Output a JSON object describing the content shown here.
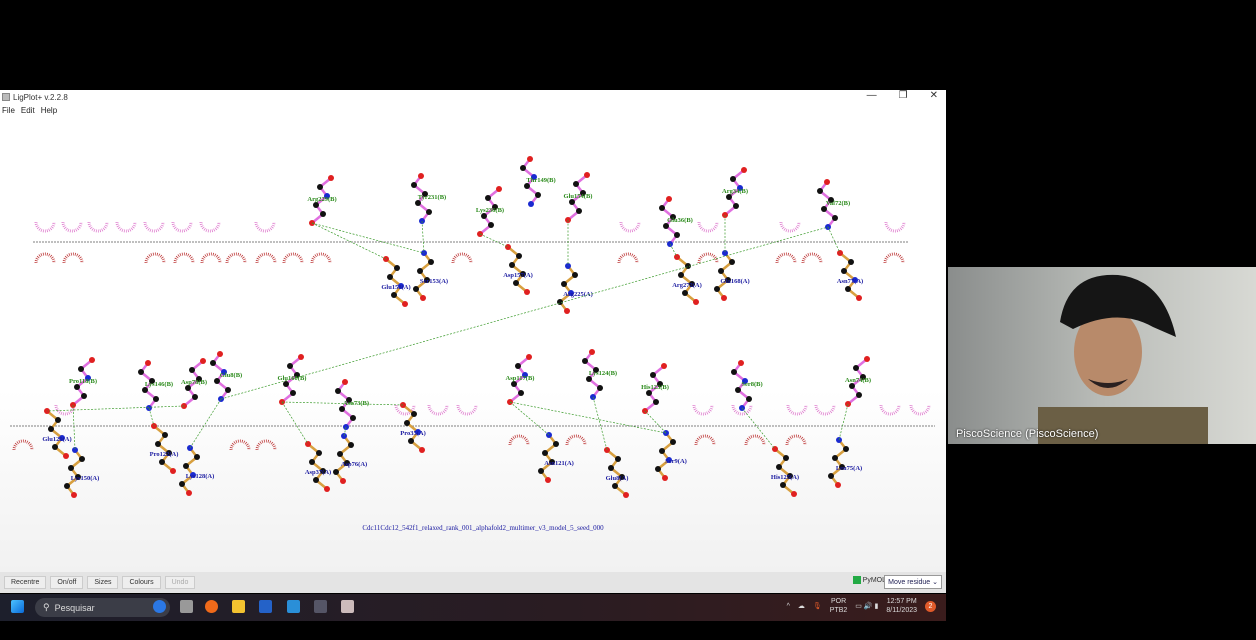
{
  "window": {
    "title": "LigPlot+ v.2.2.8",
    "controls": [
      "—",
      "❐",
      "✕"
    ],
    "menu": [
      "File",
      "Edit",
      "Help"
    ]
  },
  "diagram": {
    "caption": "Cdc11Cdc12_542f1_relaxed_rank_001_alphafold2_multimer_v3_model_5_seed_000",
    "colors": {
      "chainB_label": "#2a8a1a",
      "chainA_label": "#1a1aa0",
      "chainB_bond": "#e070e0",
      "chainA_bond": "#d8a040",
      "hbond": "#3a9a2a",
      "carbon": "#111111",
      "oxygen": "#e02020",
      "nitrogen": "#1a2ad0",
      "hydrophobic_A": "#c04040",
      "hydrophobic_B": "#e080d0"
    },
    "top_B": [
      "Arg229(B)",
      "Tyr231(B)",
      "Lys236(B)",
      "Thr149(B)",
      "Glu154(B)",
      "Glu36(B)",
      "Arg34(B)",
      "Val72(B)"
    ],
    "top_A": [
      "Glu158(A)",
      "Ser153(A)",
      "Asp157(A)",
      "Arg225(A)",
      "Arg272(A)",
      "Glu168(A)",
      "Asn77(A)"
    ],
    "bottom_B": [
      "Pro118(B)",
      "Lys146(B)",
      "Asp78(B)",
      "Glu8(B)",
      "Glu160(B)",
      "Asn73(B)",
      "Asp117(B)",
      "Lys124(B)",
      "His123(B)",
      "Ser8(B)",
      "Asn74(B)"
    ],
    "bottom_A": [
      "Glu129(A)",
      "Lys150(A)",
      "Pro122(A)",
      "Lys128(A)",
      "Asp37(A)",
      "Asp76(A)",
      "Pro35(A)",
      "Asn121(A)",
      "Glu8(A)",
      "Ser9(A)",
      "His125(A)",
      "Leu75(A)"
    ]
  },
  "toolbar": {
    "buttons": [
      "Recentre",
      "On/off",
      "Sizes",
      "Colours",
      "Undo"
    ],
    "pymol": "PyMOL",
    "mode": "Move residue"
  },
  "taskbar": {
    "search_placeholder": "Pesquisar",
    "lang": "POR",
    "layout": "PTB2",
    "time": "12:57 PM",
    "date": "8/11/2023",
    "notifications": "2"
  },
  "video": {
    "participant": "PiscoScience (PiscoScience)"
  }
}
